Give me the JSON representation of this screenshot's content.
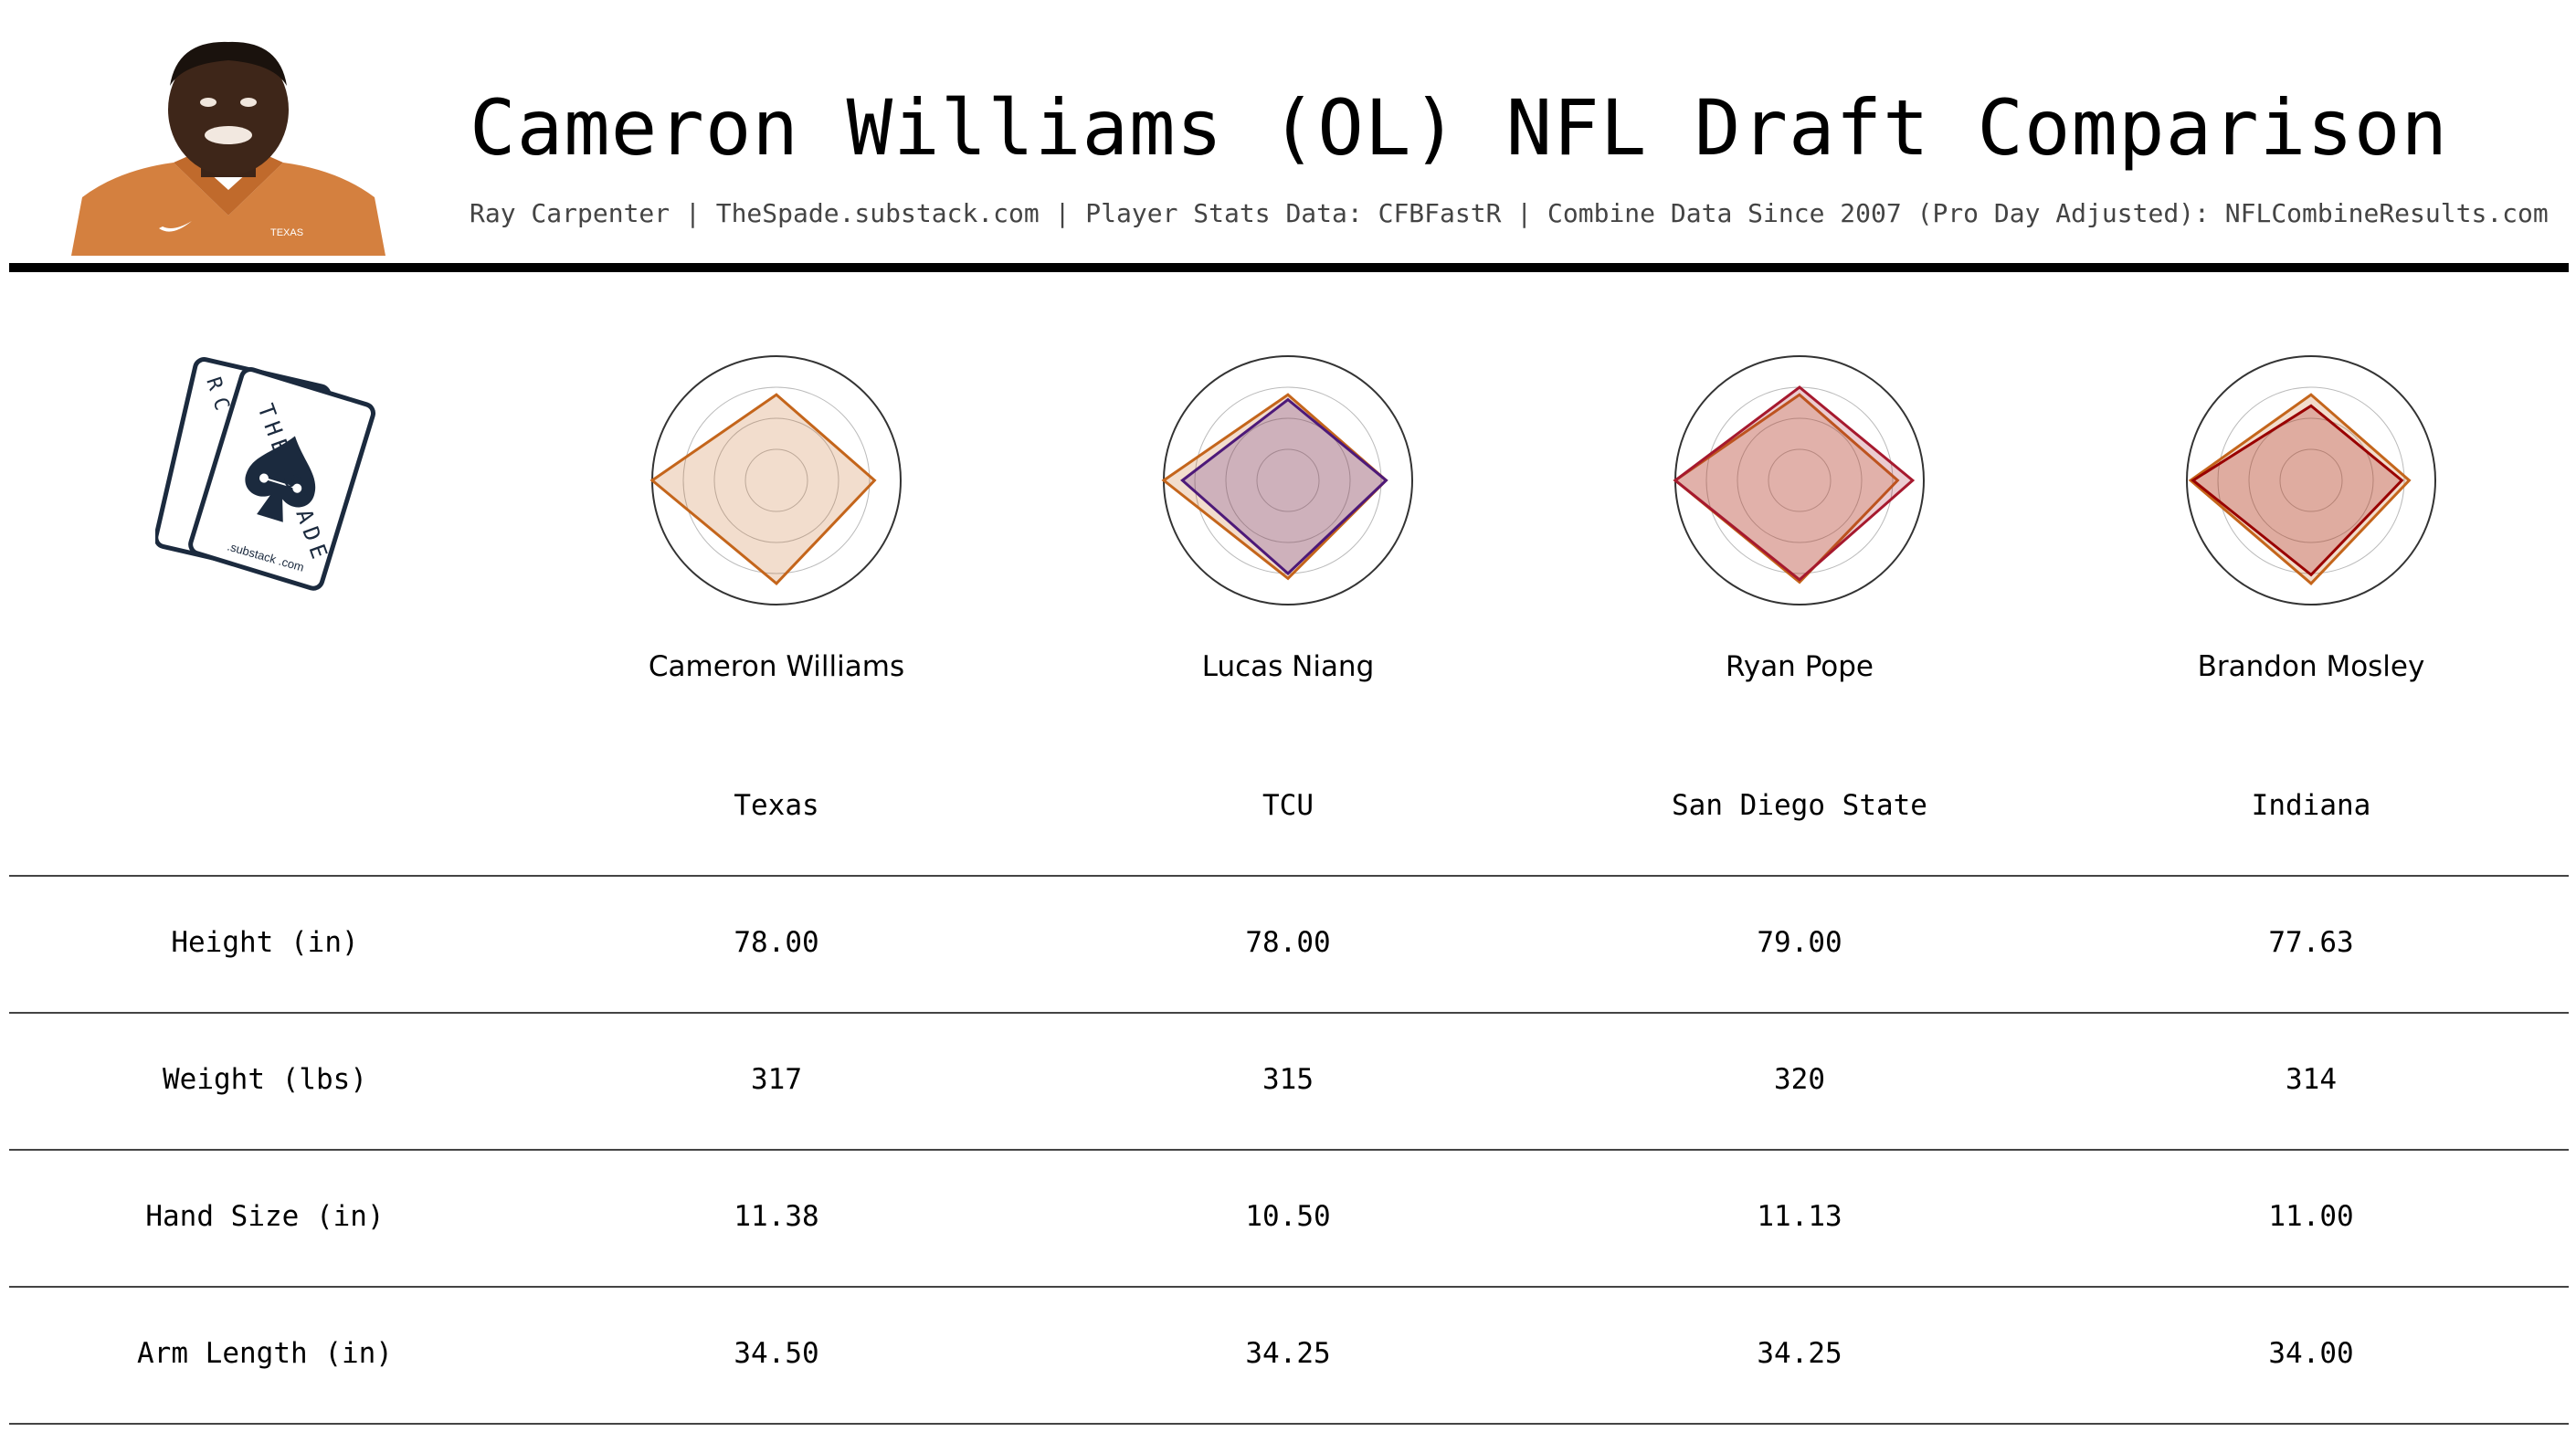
{
  "header": {
    "title": "Cameron Williams (OL) NFL Draft Comparison",
    "subtitle": "Ray Carpenter | TheSpade.substack.com | Player Stats Data: CFBFastR | Combine Data Since 2007 (Pro Day Adjusted): NFLCombineResults.com"
  },
  "photo": {
    "jersey_logo_text": "TEXAS"
  },
  "logo": {
    "brand_text": "THE SPADE",
    "corner_text": "RC",
    "site_text": ".substack .com"
  },
  "colors": {
    "texas_orange": "#C4651B",
    "tcu_purple": "#4D1979",
    "sdsu_red": "#A6192E",
    "indiana_crimson": "#990000",
    "ring_dark": "#333333",
    "ring_light": "#bbbbbb",
    "logo_navy": "#1B2A3E"
  },
  "players": [
    {
      "name": "Cameron Williams",
      "school": "Texas"
    },
    {
      "name": "Lucas Niang",
      "school": "TCU"
    },
    {
      "name": "Ryan Pope",
      "school": "San Diego State"
    },
    {
      "name": "Brandon Mosley",
      "school": "Indiana"
    }
  ],
  "metrics": [
    {
      "label": "Height (in)",
      "values": [
        "78.00",
        "78.00",
        "79.00",
        "77.63"
      ]
    },
    {
      "label": "Weight (lbs)",
      "values": [
        "317",
        "315",
        "320",
        "314"
      ]
    },
    {
      "label": "Hand Size (in)",
      "values": [
        "11.38",
        "10.50",
        "11.13",
        "11.00"
      ]
    },
    {
      "label": "Arm Length (in)",
      "values": [
        "34.50",
        "34.25",
        "34.25",
        "34.00"
      ]
    }
  ],
  "chart_data": [
    {
      "type": "radar",
      "axes": 4,
      "radial_range": [
        0,
        1
      ],
      "series": [
        {
          "values": [
            0.69,
            0.79,
            0.83,
            1.0
          ],
          "color": "#C4651B"
        }
      ]
    },
    {
      "type": "radar",
      "axes": 4,
      "radial_range": [
        0,
        1
      ],
      "series": [
        {
          "values": [
            0.69,
            0.79,
            0.79,
            1.0
          ],
          "color": "#C4651B"
        },
        {
          "values": [
            0.65,
            0.79,
            0.75,
            0.85
          ],
          "color": "#4D1979"
        }
      ]
    },
    {
      "type": "radar",
      "axes": 4,
      "radial_range": [
        0,
        1
      ],
      "series": [
        {
          "values": [
            0.69,
            0.79,
            0.82,
            1.0
          ],
          "color": "#C4651B"
        },
        {
          "values": [
            0.75,
            0.91,
            0.8,
            1.0
          ],
          "color": "#A6192E"
        }
      ]
    },
    {
      "type": "radar",
      "axes": 4,
      "radial_range": [
        0,
        1
      ],
      "series": [
        {
          "values": [
            0.69,
            0.79,
            0.83,
            0.97
          ],
          "color": "#C4651B"
        },
        {
          "values": [
            0.6,
            0.73,
            0.76,
            0.95
          ],
          "color": "#990000"
        }
      ]
    }
  ]
}
